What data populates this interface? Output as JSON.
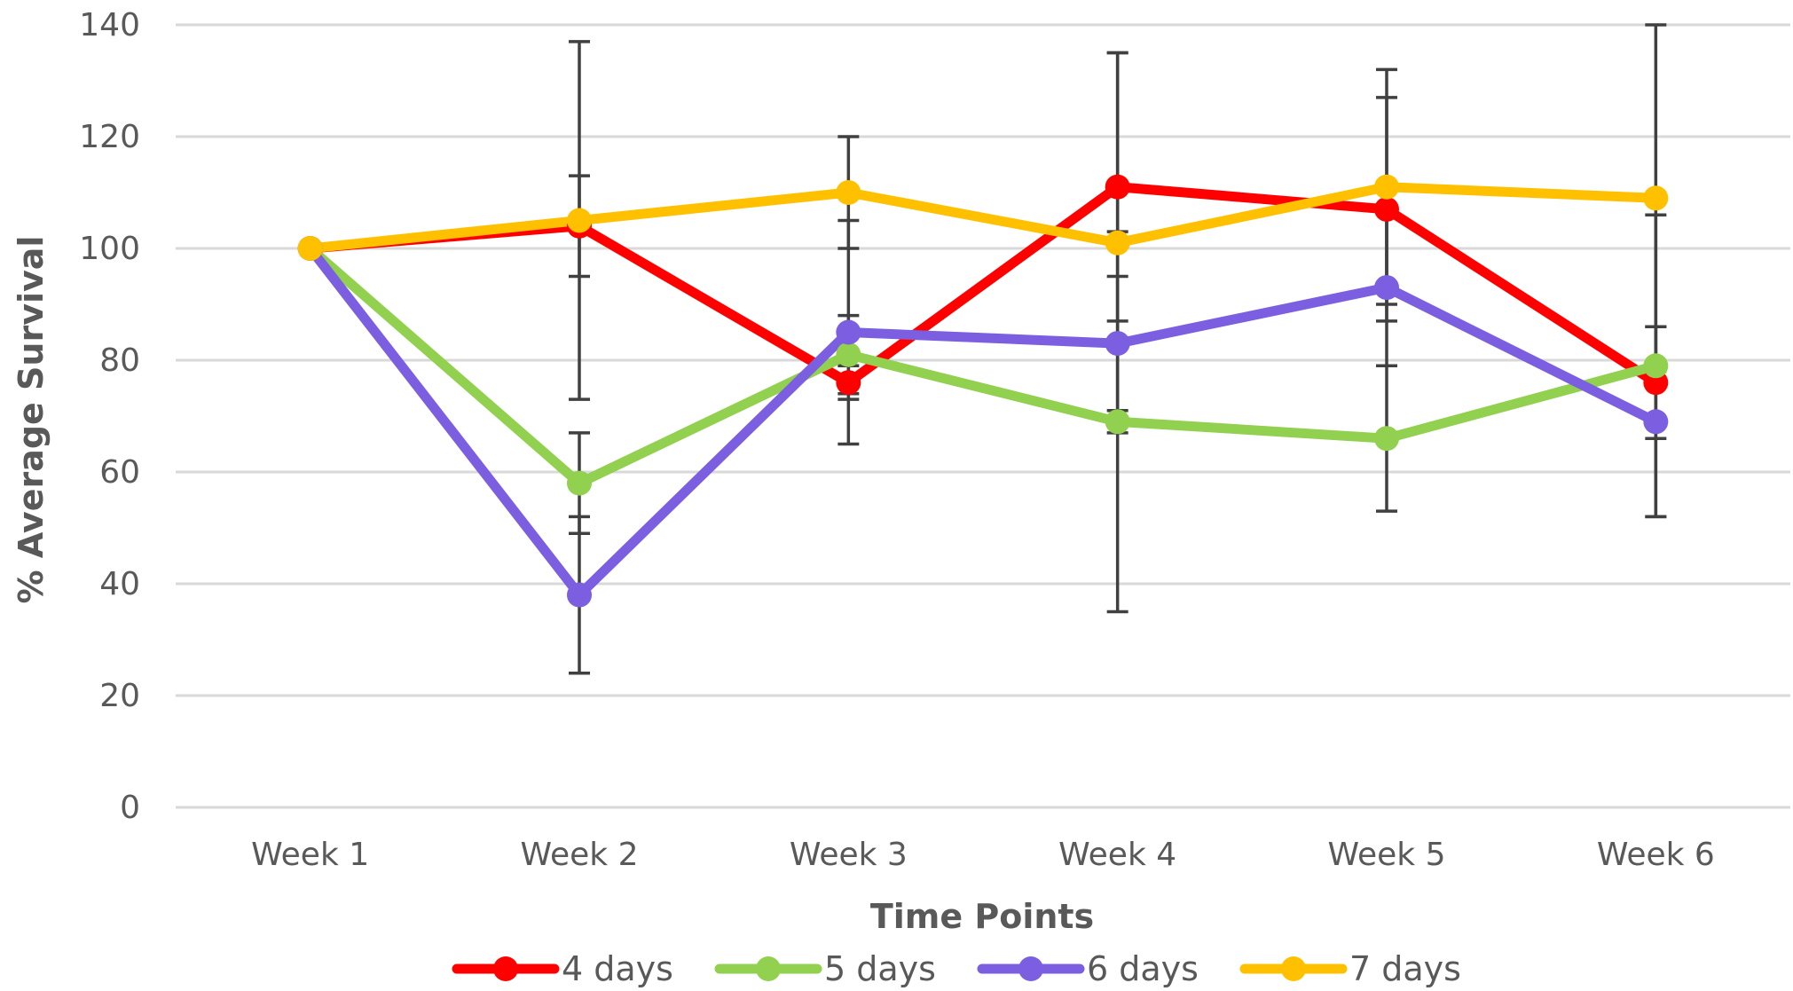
{
  "chart_data": {
    "type": "line",
    "title": "",
    "xlabel": "Time Points",
    "ylabel": "% Average Survival",
    "ylim": [
      0,
      140
    ],
    "yticks": [
      "0",
      "20",
      "40",
      "60",
      "80",
      "100",
      "120",
      "140"
    ],
    "categories": [
      "Week 1",
      "Week 2",
      "Week 3",
      "Week 4",
      "Week 5",
      "Week 6"
    ],
    "grid": "horizontal",
    "legend_position": "bottom",
    "series": [
      {
        "name": "4 days",
        "color": "#ff0000",
        "values": [
          100,
          104,
          76,
          111,
          107,
          76
        ],
        "error": [
          0,
          9,
          3,
          24,
          20,
          10
        ]
      },
      {
        "name": "5 days",
        "color": "#92d050",
        "values": [
          100,
          58,
          81,
          69,
          66,
          79
        ],
        "error": [
          0,
          9,
          7,
          34,
          13,
          27
        ]
      },
      {
        "name": "6 days",
        "color": "#7b5fe0",
        "values": [
          100,
          38,
          85,
          83,
          93,
          69
        ],
        "error": [
          0,
          14,
          20,
          12,
          14,
          17
        ]
      },
      {
        "name": "7 days",
        "color": "#ffc000",
        "values": [
          100,
          105,
          110,
          101,
          111,
          109
        ],
        "error": [
          0,
          32,
          10,
          34,
          21,
          31
        ]
      }
    ]
  }
}
